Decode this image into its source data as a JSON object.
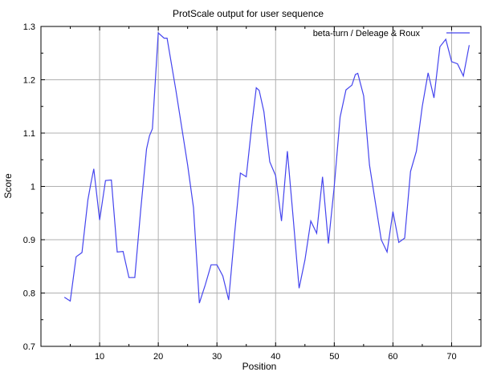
{
  "chart_data": {
    "type": "line",
    "title": "ProtScale output for user sequence",
    "xlabel": "Position",
    "ylabel": "Score",
    "xlim": [
      0,
      75
    ],
    "ylim": [
      0.7,
      1.3
    ],
    "x_ticks": [
      10,
      20,
      30,
      40,
      50,
      60,
      70
    ],
    "y_ticks": [
      0.7,
      0.8,
      0.9,
      1,
      1.1,
      1.2,
      1.3
    ],
    "x_tick_labels": [
      "10",
      "20",
      "30",
      "40",
      "50",
      "60",
      "70"
    ],
    "y_tick_labels": [
      "0.7",
      "0.8",
      "0.9",
      "1",
      "1.1",
      "1.2",
      "1.3"
    ],
    "grid": true,
    "legend_position": "top-right",
    "line_color": "#4444ee",
    "series": [
      {
        "name": "beta-turn / Deleage & Roux",
        "points": [
          [
            4,
            0.792
          ],
          [
            5,
            0.785
          ],
          [
            6,
            0.868
          ],
          [
            7,
            0.876
          ],
          [
            8,
            0.975
          ],
          [
            8.5,
            1.005
          ],
          [
            9,
            1.033
          ],
          [
            10,
            0.937
          ],
          [
            11,
            1.011
          ],
          [
            12,
            1.012
          ],
          [
            13,
            0.877
          ],
          [
            14,
            0.878
          ],
          [
            15,
            0.829
          ],
          [
            16,
            0.829
          ],
          [
            17,
            0.955
          ],
          [
            18,
            1.07
          ],
          [
            18.5,
            1.095
          ],
          [
            19,
            1.108
          ],
          [
            20,
            1.288
          ],
          [
            21,
            1.278
          ],
          [
            21.5,
            1.278
          ],
          [
            23,
            1.18
          ],
          [
            24,
            1.11
          ],
          [
            25,
            1.04
          ],
          [
            26,
            0.96
          ],
          [
            27,
            0.781
          ],
          [
            28,
            0.815
          ],
          [
            29,
            0.853
          ],
          [
            30,
            0.853
          ],
          [
            31,
            0.832
          ],
          [
            32,
            0.787
          ],
          [
            33,
            0.91
          ],
          [
            34,
            1.025
          ],
          [
            35,
            1.018
          ],
          [
            36,
            1.12
          ],
          [
            36.7,
            1.185
          ],
          [
            37.2,
            1.18
          ],
          [
            38,
            1.14
          ],
          [
            39,
            1.046
          ],
          [
            40,
            1.02
          ],
          [
            41,
            0.935
          ],
          [
            42,
            1.066
          ],
          [
            43,
            0.94
          ],
          [
            44,
            0.809
          ],
          [
            45,
            0.862
          ],
          [
            46,
            0.935
          ],
          [
            47,
            0.912
          ],
          [
            48,
            1.018
          ],
          [
            49,
            0.893
          ],
          [
            50,
            1.0
          ],
          [
            51,
            1.13
          ],
          [
            52,
            1.181
          ],
          [
            53,
            1.19
          ],
          [
            53.6,
            1.21
          ],
          [
            54,
            1.212
          ],
          [
            55,
            1.17
          ],
          [
            56,
            1.04
          ],
          [
            57,
            0.97
          ],
          [
            58,
            0.9
          ],
          [
            59,
            0.877
          ],
          [
            60,
            0.953
          ],
          [
            61,
            0.895
          ],
          [
            62,
            0.903
          ],
          [
            63,
            1.028
          ],
          [
            64,
            1.066
          ],
          [
            65,
            1.15
          ],
          [
            66,
            1.213
          ],
          [
            67,
            1.166
          ],
          [
            68,
            1.262
          ],
          [
            69,
            1.276
          ],
          [
            70,
            1.234
          ],
          [
            71,
            1.23
          ],
          [
            72,
            1.207
          ],
          [
            73,
            1.265
          ]
        ]
      }
    ]
  }
}
